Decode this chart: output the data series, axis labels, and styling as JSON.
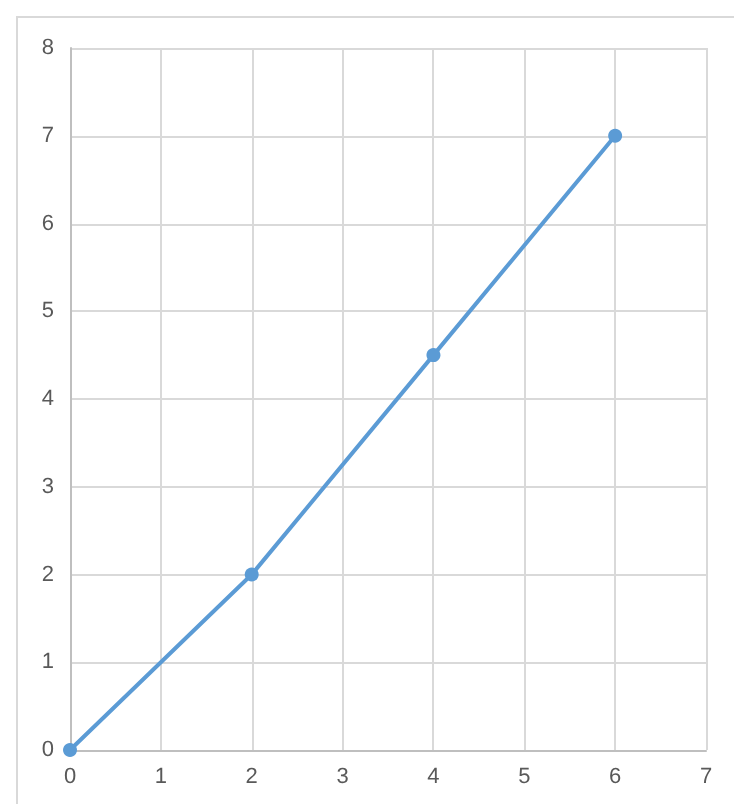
{
  "chart_data": {
    "type": "line",
    "x": [
      0,
      2,
      4,
      6
    ],
    "series": [
      {
        "color": "#5b9bd5",
        "values": [
          0,
          2,
          4.5,
          7
        ]
      }
    ],
    "xlim": [
      0,
      7
    ],
    "xticks": [
      0,
      1,
      2,
      3,
      4,
      5,
      6,
      7
    ],
    "ylim": [
      0,
      8
    ],
    "yticks": [
      0,
      1,
      2,
      3,
      4,
      5,
      6,
      7,
      8
    ],
    "grid": true,
    "marker": "circle",
    "line_style": "solid"
  }
}
